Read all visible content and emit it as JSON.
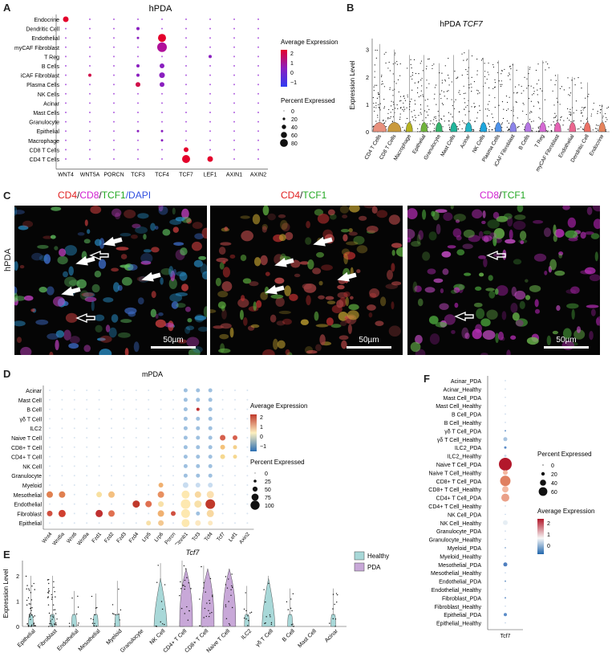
{
  "panelA": {
    "label": "A",
    "title": "hPDA",
    "rows": [
      "Endocrine",
      "Dendritic Cell",
      "Endothelial",
      "myCAF Fibroblast",
      "T Reg",
      "B Cells",
      "iCAF Fibroblast",
      "Plasma Cells",
      "NK Cells",
      "Acinar",
      "Mast Cells",
      "Granulocyte",
      "Epithelial",
      "Macrophage",
      "CD8 T Cells",
      "CD4 T Cells"
    ],
    "cols": [
      "WNT4",
      "WNT5A",
      "PORCN",
      "TCF3",
      "TCF4",
      "TCF7",
      "LEF1",
      "AXIN1",
      "AXIN2"
    ],
    "legend_expr_title": "Average Expression",
    "expr_ticks": [
      "2",
      "1",
      "0",
      "−1"
    ],
    "legend_pct_title": "Percent Expressed",
    "pct_ticks": [
      "0",
      "20",
      "40",
      "60",
      "80"
    ],
    "colors": {
      "high": "#e4002b",
      "mid": "#8a1fbf",
      "low": "#2f3cf2"
    }
  },
  "panelB": {
    "label": "B",
    "title": "hPDA",
    "title_gene": "TCF7",
    "ylabel": "Expression Level",
    "yticks": [
      "0",
      "1",
      "2",
      "3"
    ],
    "cats": [
      "CD4 T Cells",
      "CD8 T Cells",
      "Macrophage",
      "Epithelial",
      "Granulocyte",
      "Mast Cells",
      "Acinar",
      "NK Cells",
      "Plasma Cells",
      "iCAF Fibroblast",
      "B Cells",
      "T Reg",
      "myCAF Fibroblast",
      "Endothelial",
      "Dendritic Cell",
      "Endocrine"
    ],
    "violin_colors": [
      "#e8907d",
      "#c99a3d",
      "#b6b21f",
      "#6fb33b",
      "#34b36b",
      "#21b59b",
      "#22b3c4",
      "#1da6de",
      "#4d92ea",
      "#8b83e9",
      "#b577e3",
      "#d568d3",
      "#e463b4",
      "#eb668f",
      "#ec7166",
      "#e5825b"
    ]
  },
  "panelC": {
    "label": "C",
    "row_label": "hPDA",
    "images": [
      {
        "parts": [
          {
            "t": "CD4",
            "c": "#e02020"
          },
          {
            "t": "/",
            "c": "#222"
          },
          {
            "t": "CD8",
            "c": "#d020d0"
          },
          {
            "t": "/",
            "c": "#222"
          },
          {
            "t": "TCF1",
            "c": "#22a822"
          },
          {
            "t": "/DAPI",
            "c": "#3050e0"
          }
        ],
        "scale": "50µm"
      },
      {
        "parts": [
          {
            "t": "CD4",
            "c": "#e02020"
          },
          {
            "t": "/",
            "c": "#222"
          },
          {
            "t": "TCF1",
            "c": "#22a822"
          }
        ],
        "scale": "50µm"
      },
      {
        "parts": [
          {
            "t": "CD8",
            "c": "#d020d0"
          },
          {
            "t": "/",
            "c": "#222"
          },
          {
            "t": "TCF1",
            "c": "#22a822"
          }
        ],
        "scale": "50µm"
      }
    ]
  },
  "panelD": {
    "label": "D",
    "title": "mPDA",
    "rows": [
      "Acinar",
      "Mast Cell",
      "B Cell",
      "γδ T Cell",
      "ILC2",
      "Naive T Cell",
      "CD8+ T Cell",
      "CD4+ T Cell",
      "NK Cell",
      "Granulocyte",
      "Myeloid",
      "Mesothelial",
      "Endothelial",
      "Fibroblast",
      "Epithelial"
    ],
    "cols": [
      "Wnt4",
      "Wnt5a",
      "Wnt6",
      "Wnt9a",
      "Fzd1",
      "Fzd2",
      "Fzd3",
      "Fzd4",
      "Lrp5",
      "Lrp6",
      "Porcn",
      "Ctnnb1",
      "Tcf3",
      "Tcf4",
      "Tcf7",
      "Lef1",
      "Axin2"
    ],
    "legend_expr_title": "Average Expression",
    "expr_ticks": [
      "2",
      "1",
      "0",
      "−1"
    ],
    "legend_pct_title": "Percent Expressed",
    "pct_ticks": [
      "0",
      "25",
      "50",
      "75",
      "100"
    ]
  },
  "panelE": {
    "label": "E",
    "title": "Tcf7",
    "ylabel": "Expression Level",
    "yticks": [
      "0",
      "1",
      "2"
    ],
    "cats": [
      "Epithelial",
      "Fibroblast",
      "Endothelial",
      "Mesothelial",
      "Myeloid",
      "Granulocyte",
      "NK Cell",
      "CD4+ T Cell",
      "CD8+ T Cell",
      "Naive T Cell",
      "ILC2",
      "γδ T Cell",
      "B Cell",
      "Mast Cell",
      "Acinar"
    ],
    "legend": [
      {
        "name": "Healthy",
        "color": "#a8d8d8"
      },
      {
        "name": "PDA",
        "color": "#c8a8d8"
      }
    ]
  },
  "panelF": {
    "label": "F",
    "rows": [
      "Acinar_PDA",
      "Acinar_Healthy",
      "Mast Cell_PDA",
      "Mast Cell_Healthy",
      "B Cell_PDA",
      "B Cell_Healthy",
      "γδ T Cell_PDA",
      "γδ T Cell_Healthy",
      "ILC2_PDA",
      "ILC2_Healthy",
      "Naive T Cell_PDA",
      "Naive T Cell_Healthy",
      "CD8+ T Cell_PDA",
      "CD8+ T Cell_Healthy",
      "CD4+ T Cell_PDA",
      "CD4+ T Cell_Healthy",
      "NK Cell_PDA",
      "NK Cell_Healthy",
      "Granulocyte_PDA",
      "Granulocyte_Healthy",
      "Myeloid_PDA",
      "Myeloid_Healthy",
      "Mesothelial_PDA",
      "Mesothelial_Healthy",
      "Endothelial_PDA",
      "Endothelial_Healthy",
      "Fibroblast_PDA",
      "Fibroblast_Healthy",
      "Epithelial_PDA",
      "Epithelial_Healthy"
    ],
    "col": "Tcf7",
    "legend_pct_title": "Percent Expressed",
    "pct_ticks": [
      "0",
      "20",
      "40",
      "60"
    ],
    "legend_expr_title": "Average Expression",
    "expr_ticks": [
      "2",
      "1",
      "0"
    ]
  }
}
